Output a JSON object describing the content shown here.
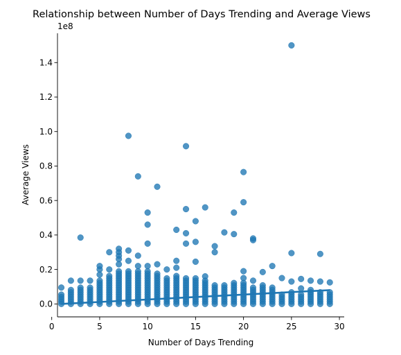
{
  "chart_data": {
    "type": "scatter",
    "title": "Relationship between Number of Days Trending and Average Views",
    "xlabel": "Number of Days Trending",
    "ylabel": "Average Views",
    "y_offset_label": "1e8",
    "xlim": [
      0.6,
      30.5
    ],
    "ylim": [
      -0.075,
      1.57
    ],
    "y_unit_multiplier": 100000000,
    "x_ticks": [
      0,
      5,
      10,
      15,
      20,
      25,
      30
    ],
    "y_ticks": [
      0.0,
      0.2,
      0.4,
      0.6,
      0.8,
      1.0,
      1.2,
      1.4
    ],
    "y_tick_labels": [
      "0.0",
      "0.2",
      "0.4",
      "0.6",
      "0.8",
      "1.0",
      "1.2",
      "1.4"
    ],
    "grid": false,
    "legend": "none",
    "colors": {
      "points": "#1f77b4",
      "trend": "#1f77b4"
    },
    "trend_line": {
      "x": [
        1,
        29
      ],
      "y": [
        0.0,
        0.08
      ]
    },
    "series": [
      {
        "outliers": [
          [
            1,
            0.095
          ],
          [
            2,
            0.135
          ],
          [
            3,
            0.385
          ],
          [
            3,
            0.135
          ],
          [
            4,
            0.135
          ],
          [
            5,
            0.22
          ],
          [
            5,
            0.2
          ],
          [
            5,
            0.17
          ],
          [
            6,
            0.3
          ],
          [
            6,
            0.2
          ],
          [
            7,
            0.32
          ],
          [
            7,
            0.3
          ],
          [
            7,
            0.28
          ],
          [
            7,
            0.26
          ],
          [
            7,
            0.23
          ],
          [
            8,
            0.975
          ],
          [
            8,
            0.31
          ],
          [
            8,
            0.25
          ],
          [
            9,
            0.74
          ],
          [
            9,
            0.28
          ],
          [
            9,
            0.22
          ],
          [
            10,
            0.53
          ],
          [
            10,
            0.46
          ],
          [
            10,
            0.35
          ],
          [
            10,
            0.22
          ],
          [
            11,
            0.68
          ],
          [
            11,
            0.23
          ],
          [
            12,
            0.2
          ],
          [
            13,
            0.43
          ],
          [
            13,
            0.25
          ],
          [
            13,
            0.21
          ],
          [
            14,
            0.915
          ],
          [
            14,
            0.55
          ],
          [
            14,
            0.41
          ],
          [
            14,
            0.35
          ],
          [
            15,
            0.48
          ],
          [
            15,
            0.36
          ],
          [
            15,
            0.245
          ],
          [
            16,
            0.56
          ],
          [
            16,
            0.16
          ],
          [
            17,
            0.335
          ],
          [
            17,
            0.3
          ],
          [
            18,
            0.415
          ],
          [
            19,
            0.53
          ],
          [
            19,
            0.405
          ],
          [
            20,
            0.765
          ],
          [
            20,
            0.59
          ],
          [
            20,
            0.19
          ],
          [
            20,
            0.15
          ],
          [
            21,
            0.38
          ],
          [
            21,
            0.37
          ],
          [
            21,
            0.135
          ],
          [
            22,
            0.185
          ],
          [
            23,
            0.22
          ],
          [
            24,
            0.15
          ],
          [
            25,
            1.5
          ],
          [
            25,
            0.295
          ],
          [
            25,
            0.13
          ],
          [
            26,
            0.145
          ],
          [
            26,
            0.09
          ],
          [
            27,
            0.135
          ],
          [
            28,
            0.29
          ],
          [
            28,
            0.13
          ],
          [
            29,
            0.125
          ]
        ],
        "column_tops": [
          [
            1,
            0.06
          ],
          [
            2,
            0.09
          ],
          [
            3,
            0.1
          ],
          [
            4,
            0.1
          ],
          [
            5,
            0.14
          ],
          [
            6,
            0.17
          ],
          [
            7,
            0.2
          ],
          [
            8,
            0.2
          ],
          [
            9,
            0.2
          ],
          [
            10,
            0.19
          ],
          [
            11,
            0.18
          ],
          [
            12,
            0.15
          ],
          [
            13,
            0.17
          ],
          [
            14,
            0.16
          ],
          [
            15,
            0.16
          ],
          [
            16,
            0.14
          ],
          [
            17,
            0.11
          ],
          [
            18,
            0.12
          ],
          [
            19,
            0.13
          ],
          [
            20,
            0.13
          ],
          [
            21,
            0.1
          ],
          [
            22,
            0.11
          ],
          [
            23,
            0.1
          ],
          [
            24,
            0.06
          ],
          [
            25,
            0.07
          ],
          [
            26,
            0.06
          ],
          [
            27,
            0.09
          ],
          [
            28,
            0.08
          ],
          [
            29,
            0.08
          ]
        ]
      }
    ]
  }
}
